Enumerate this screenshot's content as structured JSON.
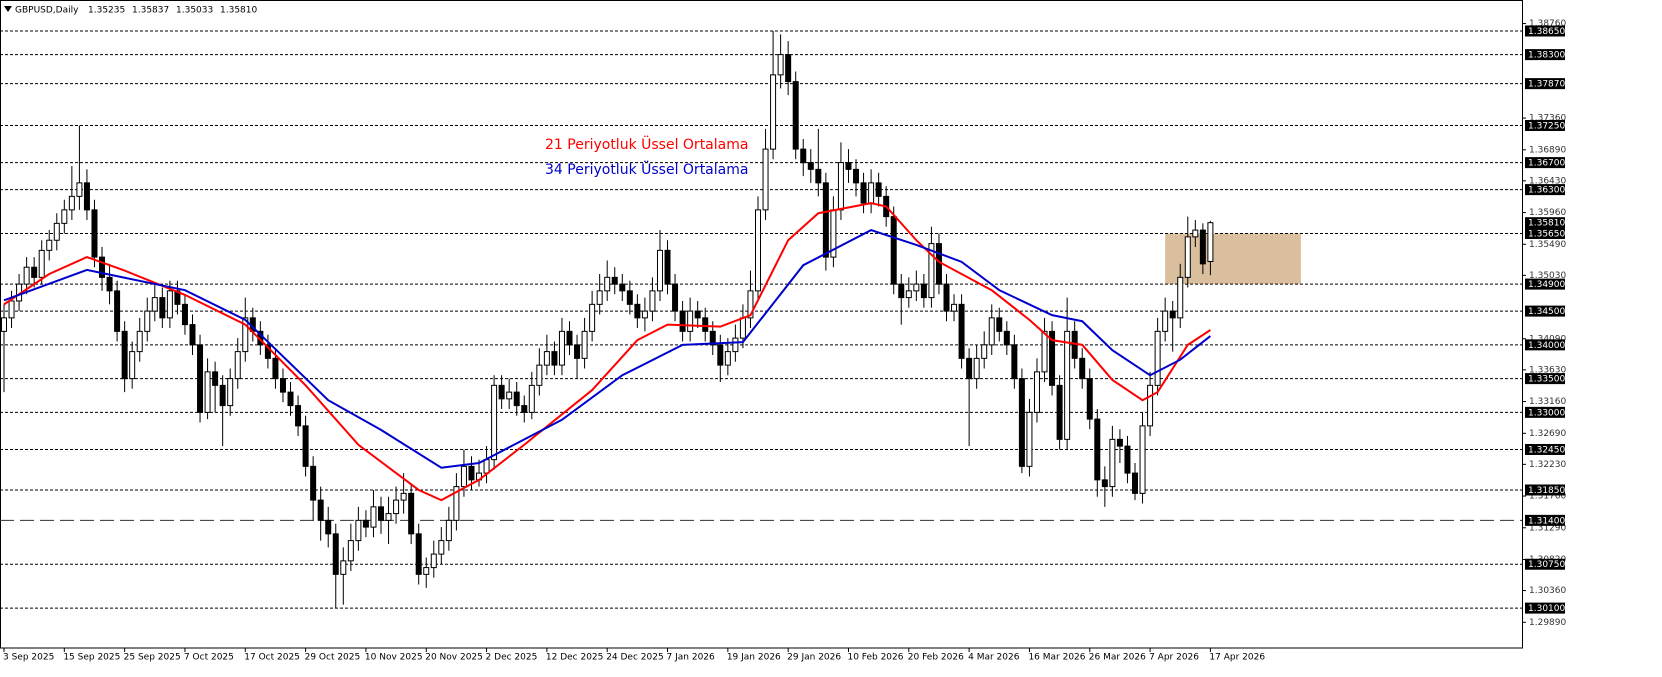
{
  "chart_data": {
    "type": "candlestick",
    "title": "GBPUSD,Daily",
    "title_values": [
      "1.35235",
      "1.35837",
      "1.35033",
      "1.35810"
    ],
    "categories": [
      "3 Sep 2025",
      null,
      null,
      null,
      null,
      null,
      null,
      null,
      "15 Sep 2025",
      null,
      null,
      null,
      null,
      null,
      null,
      null,
      "25 Sep 2025",
      null,
      null,
      null,
      null,
      null,
      null,
      null,
      "7 Oct 2025",
      null,
      null,
      null,
      null,
      null,
      null,
      null,
      "17 Oct 2025",
      null,
      null,
      null,
      null,
      null,
      null,
      null,
      "29 Oct 2025",
      null,
      null,
      null,
      null,
      null,
      null,
      null,
      "10 Nov 2025",
      null,
      null,
      null,
      null,
      null,
      null,
      null,
      "20 Nov 2025",
      null,
      null,
      null,
      null,
      null,
      null,
      null,
      "2 Dec 2025",
      null,
      null,
      null,
      null,
      null,
      null,
      null,
      "12 Dec 2025",
      null,
      null,
      null,
      null,
      null,
      null,
      null,
      "24 Dec 2025",
      null,
      null,
      null,
      null,
      null,
      null,
      null,
      "7 Jan 2026",
      null,
      null,
      null,
      null,
      null,
      null,
      null,
      "19 Jan 2026",
      null,
      null,
      null,
      null,
      null,
      null,
      null,
      "29 Jan 2026",
      null,
      null,
      null,
      null,
      null,
      null,
      null,
      "10 Feb 2026",
      null,
      null,
      null,
      null,
      null,
      null,
      null,
      "20 Feb 2026",
      null,
      null,
      null,
      null,
      null,
      null,
      null,
      "4 Mar 2026",
      null,
      null,
      null,
      null,
      null,
      null,
      null,
      "16 Mar 2026",
      null,
      null,
      null,
      null,
      null,
      null,
      null,
      "26 Mar 2026",
      null,
      null,
      null,
      null,
      null,
      null,
      null,
      "7 Apr 2026",
      null,
      null,
      null,
      null,
      null,
      null,
      null,
      "17 Apr 2026"
    ],
    "ohlc": [
      [
        1.342,
        1.346,
        1.333,
        1.344
      ],
      [
        1.344,
        1.348,
        1.3425,
        1.3465
      ],
      [
        1.3465,
        1.3505,
        1.345,
        1.349
      ],
      [
        1.349,
        1.353,
        1.3475,
        1.3515
      ],
      [
        1.3515,
        1.353,
        1.3485,
        1.35
      ],
      [
        1.35,
        1.3555,
        1.349,
        1.354
      ],
      [
        1.354,
        1.357,
        1.3525,
        1.3555
      ],
      [
        1.3555,
        1.3595,
        1.354,
        1.358
      ],
      [
        1.358,
        1.3615,
        1.3565,
        1.36
      ],
      [
        1.36,
        1.3665,
        1.3585,
        1.362
      ],
      [
        1.362,
        1.3725,
        1.36,
        1.364
      ],
      [
        1.364,
        1.366,
        1.3585,
        1.36
      ],
      [
        1.36,
        1.3615,
        1.3515,
        1.353
      ],
      [
        1.353,
        1.3545,
        1.348,
        1.35
      ],
      [
        1.35,
        1.352,
        1.346,
        1.348
      ],
      [
        1.348,
        1.3495,
        1.3405,
        1.342
      ],
      [
        1.342,
        1.3435,
        1.333,
        1.335
      ],
      [
        1.335,
        1.3405,
        1.3335,
        1.339
      ],
      [
        1.339,
        1.344,
        1.3375,
        1.342
      ],
      [
        1.342,
        1.347,
        1.3405,
        1.345
      ],
      [
        1.345,
        1.349,
        1.3435,
        1.347
      ],
      [
        1.347,
        1.3485,
        1.3425,
        1.344
      ],
      [
        1.344,
        1.3495,
        1.3425,
        1.348
      ],
      [
        1.348,
        1.3495,
        1.3445,
        1.346
      ],
      [
        1.346,
        1.3475,
        1.3415,
        1.343
      ],
      [
        1.343,
        1.3445,
        1.3385,
        1.34
      ],
      [
        1.34,
        1.3415,
        1.3285,
        1.33
      ],
      [
        1.33,
        1.338,
        1.329,
        1.336
      ],
      [
        1.336,
        1.3375,
        1.33,
        1.334
      ],
      [
        1.334,
        1.3355,
        1.325,
        1.331
      ],
      [
        1.331,
        1.3365,
        1.3295,
        1.335
      ],
      [
        1.335,
        1.341,
        1.3335,
        1.339
      ],
      [
        1.339,
        1.347,
        1.3375,
        1.344
      ],
      [
        1.344,
        1.3455,
        1.3405,
        1.342
      ],
      [
        1.342,
        1.3435,
        1.3385,
        1.34
      ],
      [
        1.34,
        1.3415,
        1.3365,
        1.338
      ],
      [
        1.338,
        1.3395,
        1.3335,
        1.335
      ],
      [
        1.335,
        1.3365,
        1.3315,
        1.333
      ],
      [
        1.333,
        1.3345,
        1.3295,
        1.331
      ],
      [
        1.331,
        1.3325,
        1.3265,
        1.328
      ],
      [
        1.328,
        1.3295,
        1.3205,
        1.322
      ],
      [
        1.322,
        1.3235,
        1.314,
        1.317
      ],
      [
        1.317,
        1.319,
        1.311,
        1.314
      ],
      [
        1.314,
        1.316,
        1.31,
        1.312
      ],
      [
        1.312,
        1.3135,
        1.301,
        1.306
      ],
      [
        1.306,
        1.31,
        1.3015,
        1.308
      ],
      [
        1.308,
        1.3135,
        1.3065,
        1.311
      ],
      [
        1.311,
        1.316,
        1.3095,
        1.314
      ],
      [
        1.314,
        1.3155,
        1.3115,
        1.313
      ],
      [
        1.313,
        1.3185,
        1.3115,
        1.316
      ],
      [
        1.316,
        1.3175,
        1.312,
        1.314
      ],
      [
        1.314,
        1.3175,
        1.3105,
        1.315
      ],
      [
        1.315,
        1.319,
        1.3135,
        1.317
      ],
      [
        1.317,
        1.321,
        1.315,
        1.318
      ],
      [
        1.318,
        1.3195,
        1.3105,
        1.312
      ],
      [
        1.312,
        1.3135,
        1.3045,
        1.306
      ],
      [
        1.306,
        1.3085,
        1.304,
        1.307
      ],
      [
        1.307,
        1.311,
        1.3055,
        1.309
      ],
      [
        1.309,
        1.313,
        1.3075,
        1.311
      ],
      [
        1.311,
        1.316,
        1.3095,
        1.314
      ],
      [
        1.314,
        1.321,
        1.3125,
        1.319
      ],
      [
        1.319,
        1.3245,
        1.3175,
        1.322
      ],
      [
        1.322,
        1.3235,
        1.3185,
        1.32
      ],
      [
        1.32,
        1.323,
        1.319,
        1.321
      ],
      [
        1.321,
        1.325,
        1.3195,
        1.323
      ],
      [
        1.323,
        1.3355,
        1.3215,
        1.334
      ],
      [
        1.334,
        1.3355,
        1.3305,
        1.332
      ],
      [
        1.332,
        1.335,
        1.3305,
        1.333
      ],
      [
        1.333,
        1.3345,
        1.3295,
        1.331
      ],
      [
        1.331,
        1.3325,
        1.3285,
        1.33
      ],
      [
        1.33,
        1.336,
        1.329,
        1.334
      ],
      [
        1.334,
        1.3395,
        1.3325,
        1.337
      ],
      [
        1.337,
        1.3415,
        1.3355,
        1.339
      ],
      [
        1.339,
        1.3405,
        1.3355,
        1.337
      ],
      [
        1.337,
        1.344,
        1.3355,
        1.342
      ],
      [
        1.342,
        1.3435,
        1.3385,
        1.34
      ],
      [
        1.34,
        1.3415,
        1.335,
        1.338
      ],
      [
        1.338,
        1.344,
        1.3365,
        1.342
      ],
      [
        1.342,
        1.348,
        1.3405,
        1.346
      ],
      [
        1.346,
        1.3505,
        1.3445,
        1.348
      ],
      [
        1.348,
        1.3525,
        1.3465,
        1.35
      ],
      [
        1.35,
        1.3515,
        1.3475,
        1.349
      ],
      [
        1.349,
        1.3505,
        1.3465,
        1.348
      ],
      [
        1.348,
        1.3495,
        1.3445,
        1.346
      ],
      [
        1.346,
        1.3475,
        1.3425,
        1.344
      ],
      [
        1.344,
        1.347,
        1.342,
        1.345
      ],
      [
        1.345,
        1.35,
        1.3435,
        1.348
      ],
      [
        1.348,
        1.357,
        1.3465,
        1.354
      ],
      [
        1.354,
        1.3555,
        1.3475,
        1.349
      ],
      [
        1.349,
        1.3505,
        1.3435,
        1.345
      ],
      [
        1.345,
        1.3465,
        1.3405,
        1.342
      ],
      [
        1.342,
        1.347,
        1.3405,
        1.345
      ],
      [
        1.345,
        1.3465,
        1.3425,
        1.344
      ],
      [
        1.344,
        1.3455,
        1.3405,
        1.342
      ],
      [
        1.342,
        1.3435,
        1.3385,
        1.34
      ],
      [
        1.34,
        1.3415,
        1.3345,
        1.337
      ],
      [
        1.337,
        1.341,
        1.3355,
        1.339
      ],
      [
        1.339,
        1.343,
        1.3375,
        1.341
      ],
      [
        1.341,
        1.346,
        1.3395,
        1.344
      ],
      [
        1.344,
        1.351,
        1.3425,
        1.348
      ],
      [
        1.348,
        1.362,
        1.3465,
        1.36
      ],
      [
        1.36,
        1.372,
        1.3585,
        1.369
      ],
      [
        1.369,
        1.3865,
        1.3675,
        1.38
      ],
      [
        1.38,
        1.386,
        1.378,
        1.383
      ],
      [
        1.383,
        1.385,
        1.377,
        1.379
      ],
      [
        1.379,
        1.3805,
        1.3675,
        1.369
      ],
      [
        1.369,
        1.3705,
        1.365,
        1.367
      ],
      [
        1.367,
        1.369,
        1.364,
        1.366
      ],
      [
        1.366,
        1.372,
        1.362,
        1.364
      ],
      [
        1.364,
        1.3655,
        1.351,
        1.353
      ],
      [
        1.353,
        1.362,
        1.3515,
        1.36
      ],
      [
        1.36,
        1.37,
        1.3585,
        1.367
      ],
      [
        1.367,
        1.369,
        1.364,
        1.366
      ],
      [
        1.366,
        1.3675,
        1.362,
        1.364
      ],
      [
        1.364,
        1.3655,
        1.3595,
        1.361
      ],
      [
        1.361,
        1.366,
        1.3595,
        1.364
      ],
      [
        1.364,
        1.3655,
        1.3605,
        1.362
      ],
      [
        1.362,
        1.3635,
        1.3575,
        1.359
      ],
      [
        1.359,
        1.3605,
        1.3475,
        1.349
      ],
      [
        1.349,
        1.3505,
        1.343,
        1.347
      ],
      [
        1.347,
        1.35,
        1.3455,
        1.348
      ],
      [
        1.348,
        1.351,
        1.3465,
        1.349
      ],
      [
        1.349,
        1.3505,
        1.3455,
        1.347
      ],
      [
        1.347,
        1.3575,
        1.3455,
        1.355
      ],
      [
        1.355,
        1.3565,
        1.3475,
        1.349
      ],
      [
        1.349,
        1.3505,
        1.3435,
        1.345
      ],
      [
        1.345,
        1.3475,
        1.3435,
        1.346
      ],
      [
        1.346,
        1.3475,
        1.3365,
        1.338
      ],
      [
        1.338,
        1.3395,
        1.325,
        1.335
      ],
      [
        1.335,
        1.34,
        1.3335,
        1.338
      ],
      [
        1.338,
        1.342,
        1.3365,
        1.34
      ],
      [
        1.34,
        1.346,
        1.3385,
        1.344
      ],
      [
        1.344,
        1.3455,
        1.3405,
        1.342
      ],
      [
        1.342,
        1.3435,
        1.3385,
        1.34
      ],
      [
        1.34,
        1.3415,
        1.3335,
        1.335
      ],
      [
        1.335,
        1.3365,
        1.321,
        1.322
      ],
      [
        1.322,
        1.332,
        1.3205,
        1.33
      ],
      [
        1.33,
        1.338,
        1.3285,
        1.336
      ],
      [
        1.336,
        1.344,
        1.3345,
        1.342
      ],
      [
        1.342,
        1.3435,
        1.3325,
        1.334
      ],
      [
        1.334,
        1.3355,
        1.3245,
        1.326
      ],
      [
        1.326,
        1.347,
        1.3245,
        1.342
      ],
      [
        1.342,
        1.3435,
        1.3365,
        1.338
      ],
      [
        1.338,
        1.3395,
        1.3335,
        1.335
      ],
      [
        1.335,
        1.3365,
        1.3275,
        1.329
      ],
      [
        1.329,
        1.3305,
        1.3175,
        1.32
      ],
      [
        1.32,
        1.322,
        1.316,
        1.319
      ],
      [
        1.319,
        1.328,
        1.3175,
        1.326
      ],
      [
        1.326,
        1.3275,
        1.3225,
        1.325
      ],
      [
        1.325,
        1.3265,
        1.3195,
        1.321
      ],
      [
        1.321,
        1.3225,
        1.317,
        1.318
      ],
      [
        1.318,
        1.33,
        1.3165,
        1.328
      ],
      [
        1.328,
        1.336,
        1.3265,
        1.334
      ],
      [
        1.334,
        1.344,
        1.3325,
        1.342
      ],
      [
        1.342,
        1.347,
        1.3405,
        1.345
      ],
      [
        1.345,
        1.3465,
        1.339,
        1.344
      ],
      [
        1.344,
        1.352,
        1.3425,
        1.35
      ],
      [
        1.35,
        1.359,
        1.3485,
        1.356
      ],
      [
        1.356,
        1.3585,
        1.3545,
        1.357
      ],
      [
        1.357,
        1.358,
        1.3505,
        1.352
      ],
      [
        1.35235,
        1.35837,
        1.35033,
        1.3581
      ]
    ],
    "series": [
      {
        "name": "21 Periyotluk Üssel Ortalama",
        "color": "#ff0000",
        "x": [
          0,
          6,
          11,
          16,
          24,
          32,
          40,
          47,
          55,
          58,
          63,
          69,
          78,
          84,
          88,
          95,
          99,
          104,
          108,
          115,
          117,
          121,
          124,
          131,
          136,
          139,
          143,
          147,
          151,
          153,
          157,
          160
        ],
        "values": [
          1.346,
          1.3505,
          1.353,
          1.351,
          1.3474,
          1.343,
          1.334,
          1.3252,
          1.3185,
          1.317,
          1.32,
          1.3252,
          1.3333,
          1.3407,
          1.343,
          1.3427,
          1.3444,
          1.3555,
          1.3595,
          1.361,
          1.3605,
          1.3555,
          1.3523,
          1.3481,
          1.3437,
          1.3407,
          1.34,
          1.3348,
          1.3318,
          1.333,
          1.34,
          1.3422
        ]
      },
      {
        "name": "34 Periyotluk Üssel Ortalama",
        "color": "#0000cc",
        "x": [
          0,
          11,
          24,
          32,
          43,
          50,
          58,
          63,
          74,
          82,
          90,
          98,
          106,
          115,
          121,
          127,
          132,
          139,
          143,
          147,
          152,
          156,
          160
        ],
        "values": [
          1.3466,
          1.3511,
          1.3481,
          1.3437,
          1.3318,
          1.3274,
          1.3218,
          1.3225,
          1.3289,
          1.3355,
          1.34,
          1.3404,
          1.3518,
          1.357,
          1.3548,
          1.3523,
          1.3481,
          1.3444,
          1.3435,
          1.3392,
          1.3355,
          1.3378,
          1.3413
        ]
      }
    ],
    "zone": {
      "x": [
        154,
        172
      ],
      "y": [
        1.349,
        1.3565
      ],
      "color": "#d2b48c"
    },
    "levels": [
      {
        "value": 1.3865,
        "label": "1.38650"
      },
      {
        "value": 1.383,
        "label": "1.38300"
      },
      {
        "value": 1.3787,
        "label": "1.37870"
      },
      {
        "value": 1.3725,
        "label": "1.37250"
      },
      {
        "value": 1.367,
        "label": "1.36700"
      },
      {
        "value": 1.363,
        "label": "1.36300"
      },
      {
        "value": 1.3565,
        "label": "1.35650"
      },
      {
        "value": 1.349,
        "label": "1.34900"
      },
      {
        "value": 1.345,
        "label": "1.34500"
      },
      {
        "value": 1.34,
        "label": "1.34000"
      },
      {
        "value": 1.335,
        "label": "1.33500"
      },
      {
        "value": 1.33,
        "label": "1.33000"
      },
      {
        "value": 1.3245,
        "label": "1.32450"
      },
      {
        "value": 1.3185,
        "label": "1.31850"
      },
      {
        "value": 1.314,
        "label": "1.31400",
        "dash": "long"
      },
      {
        "value": 1.3075,
        "label": "1.30750"
      },
      {
        "value": 1.301,
        "label": "1.30100"
      }
    ],
    "current_price": {
      "value": 1.3581,
      "label": "1.35810"
    },
    "ylim": [
      1.29509,
      1.39035
    ],
    "yticks": [
      {
        "value": 1.3876,
        "label": "1.38760"
      },
      {
        "value": 1.3736,
        "label": "1.37360"
      },
      {
        "value": 1.3689,
        "label": "1.36890"
      },
      {
        "value": 1.3643,
        "label": "1.36430"
      },
      {
        "value": 1.3596,
        "label": "1.35960"
      },
      {
        "value": 1.3549,
        "label": "1.35490"
      },
      {
        "value": 1.3503,
        "label": "1.35030"
      },
      {
        "value": 1.3409,
        "label": "1.34090"
      },
      {
        "value": 1.3363,
        "label": "1.33630"
      },
      {
        "value": 1.3316,
        "label": "1.33160"
      },
      {
        "value": 1.3269,
        "label": "1.32690"
      },
      {
        "value": 1.3223,
        "label": "1.32230"
      },
      {
        "value": 1.3176,
        "label": "1.31760"
      },
      {
        "value": 1.3129,
        "label": "1.31290"
      },
      {
        "value": 1.3082,
        "label": "1.30820"
      },
      {
        "value": 1.3036,
        "label": "1.30360"
      },
      {
        "value": 1.2989,
        "label": "1.29890"
      }
    ],
    "bull_color": "#ffffff",
    "bear_color": "#000000"
  }
}
